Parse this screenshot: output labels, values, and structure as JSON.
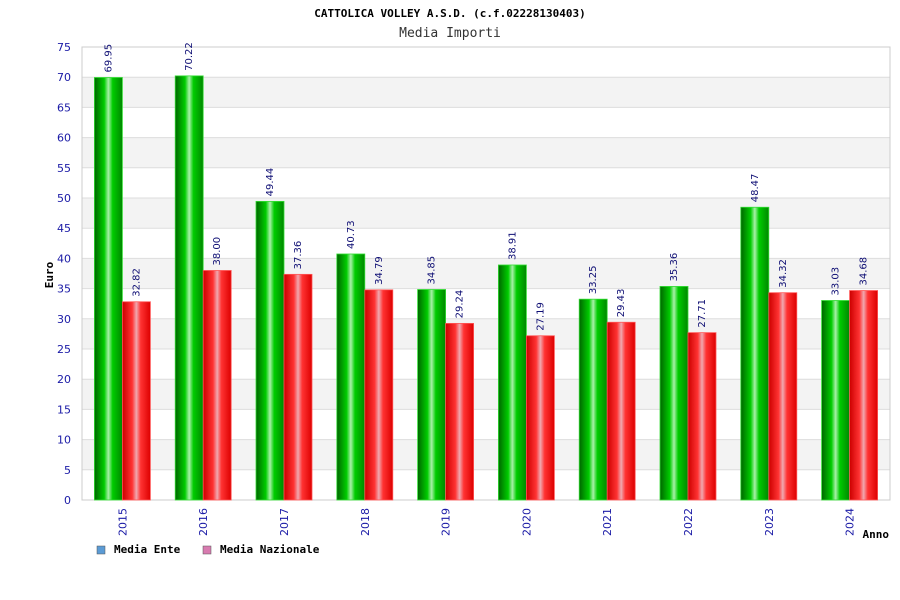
{
  "chart_data": {
    "type": "bar",
    "title": "CATTOLICA VOLLEY A.S.D. (c.f.02228130403)",
    "subtitle": "Media Importi",
    "xlabel": "Anno",
    "ylabel": "Euro",
    "ylim": [
      0,
      75
    ],
    "yticks": [
      0,
      5,
      10,
      15,
      20,
      25,
      30,
      35,
      40,
      45,
      50,
      55,
      60,
      65,
      70,
      75
    ],
    "grid": true,
    "legend_position": "bottom-left",
    "categories": [
      "2015",
      "2016",
      "2017",
      "2018",
      "2019",
      "2020",
      "2021",
      "2022",
      "2023",
      "2024"
    ],
    "series": [
      {
        "name": "Media Ente",
        "color": "#00aa00",
        "legend_color": "#5b9bd5",
        "values": [
          69.95,
          70.22,
          49.44,
          40.73,
          34.85,
          38.91,
          33.25,
          35.36,
          48.47,
          33.03
        ],
        "labels": [
          "69.95",
          "70.22",
          "49.44",
          "40.73",
          "34.85",
          "38.91",
          "33.25",
          "35.36",
          "48.47",
          "33.03"
        ]
      },
      {
        "name": "Media Nazionale",
        "color": "#ee1111",
        "legend_color": "#d87bb0",
        "values": [
          32.82,
          38.0,
          37.36,
          34.79,
          29.24,
          27.19,
          29.43,
          27.71,
          34.32,
          34.68
        ],
        "labels": [
          "32.82",
          "38.00",
          "37.36",
          "34.79",
          "29.24",
          "27.19",
          "29.43",
          "27.71",
          "34.32",
          "34.68"
        ]
      }
    ]
  }
}
